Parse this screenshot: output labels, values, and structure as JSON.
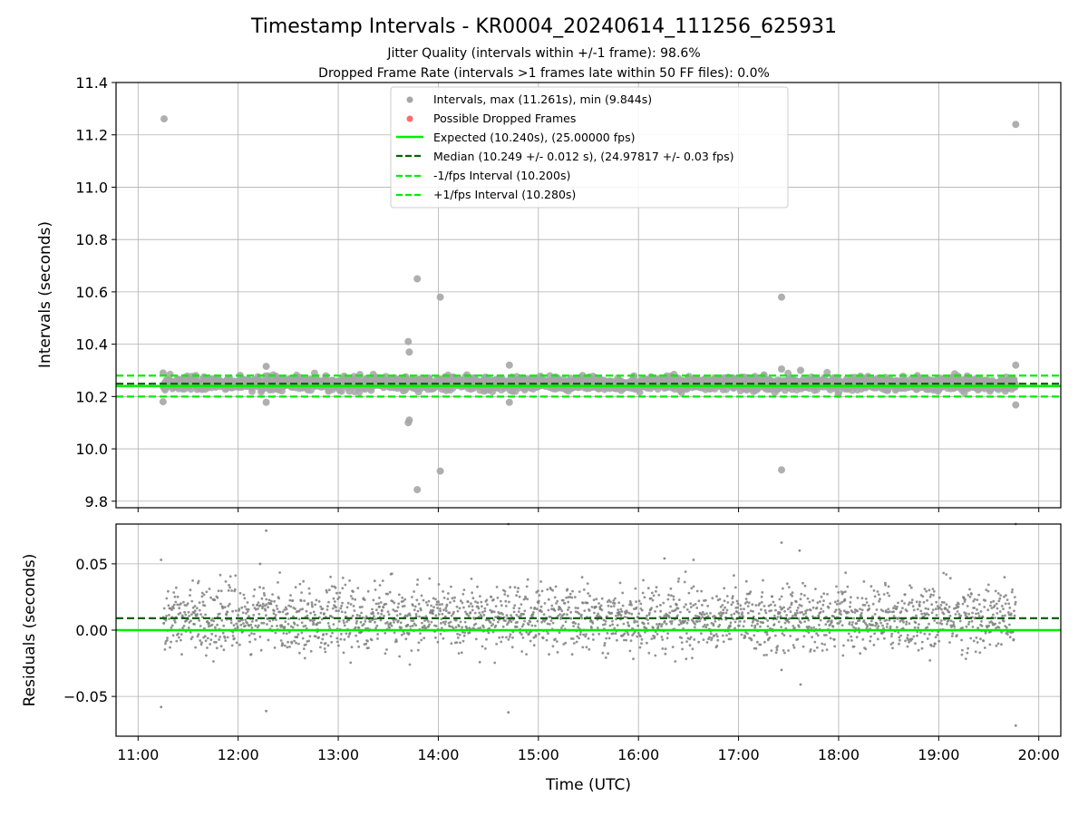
{
  "chart_data": [
    {
      "type": "scatter",
      "title": "Timestamp Intervals - KR0004_20240614_111256_625931",
      "subtitle_lines": [
        "Jitter Quality (intervals within +/-1 frame): 98.6%",
        "Dropped Frame Rate (intervals >1 frames late within 50 FF files): 0.0%"
      ],
      "ylabel": "Intervals (seconds)",
      "xlim_hours": [
        10.78,
        20.22
      ],
      "ylim": [
        9.775,
        11.4
      ],
      "grid": true,
      "legend_position": "top-center",
      "yticks": [
        {
          "v": 11.4,
          "label": "11.4"
        },
        {
          "v": 11.2,
          "label": "11.2"
        },
        {
          "v": 11.0,
          "label": "11.0"
        },
        {
          "v": 10.8,
          "label": "10.8"
        },
        {
          "v": 10.6,
          "label": "10.6"
        },
        {
          "v": 10.4,
          "label": "10.4"
        },
        {
          "v": 10.2,
          "label": "10.2"
        },
        {
          "v": 10.0,
          "label": "10.0"
        },
        {
          "v": 9.8,
          "label": "9.8"
        }
      ],
      "series": [
        {
          "name": "Intervals, max (11.261s), min (9.844s)",
          "kind": "points",
          "color": "#a6a6a6",
          "baseline": 10.249,
          "spread": 0.012,
          "range_hours": [
            11.25,
            19.77
          ],
          "outliers": [
            {
              "x": 11.26,
              "y": 11.261
            },
            {
              "x": 11.25,
              "y": 10.29
            },
            {
              "x": 11.25,
              "y": 10.18
            },
            {
              "x": 12.28,
              "y": 10.315
            },
            {
              "x": 12.28,
              "y": 10.178
            },
            {
              "x": 13.7,
              "y": 10.41
            },
            {
              "x": 13.71,
              "y": 10.37
            },
            {
              "x": 13.7,
              "y": 10.1
            },
            {
              "x": 13.71,
              "y": 10.11
            },
            {
              "x": 13.79,
              "y": 10.65
            },
            {
              "x": 13.79,
              "y": 9.844
            },
            {
              "x": 14.02,
              "y": 10.58
            },
            {
              "x": 14.02,
              "y": 9.915
            },
            {
              "x": 14.71,
              "y": 10.32
            },
            {
              "x": 14.71,
              "y": 10.178
            },
            {
              "x": 17.43,
              "y": 10.58
            },
            {
              "x": 17.43,
              "y": 9.92
            },
            {
              "x": 17.43,
              "y": 10.305
            },
            {
              "x": 17.62,
              "y": 10.3
            },
            {
              "x": 19.77,
              "y": 11.24
            },
            {
              "x": 19.77,
              "y": 10.32
            },
            {
              "x": 19.77,
              "y": 10.168
            }
          ]
        },
        {
          "name": "Possible Dropped Frames",
          "kind": "points",
          "color": "#ff6b6b",
          "values": []
        },
        {
          "name": "Expected (10.240s), (25.00000 fps)",
          "kind": "hline",
          "y": 10.24,
          "color": "#00ee00",
          "style": "solid"
        },
        {
          "name": "Median (10.249 +/- 0.012 s), (24.97817 +/- 0.03 fps)",
          "kind": "hline",
          "y": 10.249,
          "color": "#006400",
          "style": "dashed"
        },
        {
          "name": "-1/fps Interval (10.200s)",
          "kind": "hline",
          "y": 10.2,
          "color": "#00ee00",
          "style": "dashed"
        },
        {
          "name": "+1/fps Interval (10.280s)",
          "kind": "hline",
          "y": 10.28,
          "color": "#00ee00",
          "style": "dashed"
        }
      ]
    },
    {
      "type": "scatter",
      "xlabel": "Time (UTC)",
      "ylabel": "Residuals (seconds)",
      "xlim_hours": [
        10.78,
        20.22
      ],
      "ylim": [
        -0.08,
        0.08
      ],
      "grid": true,
      "yticks": [
        {
          "v": 0.05,
          "label": "0.05"
        },
        {
          "v": 0.0,
          "label": "0.00"
        },
        {
          "v": -0.05,
          "label": "−0.05"
        }
      ],
      "xticks": [
        {
          "v": 11,
          "label": "11:00"
        },
        {
          "v": 12,
          "label": "12:00"
        },
        {
          "v": 13,
          "label": "13:00"
        },
        {
          "v": 14,
          "label": "14:00"
        },
        {
          "v": 15,
          "label": "15:00"
        },
        {
          "v": 16,
          "label": "16:00"
        },
        {
          "v": 17,
          "label": "17:00"
        },
        {
          "v": 18,
          "label": "18:00"
        },
        {
          "v": 19,
          "label": "19:00"
        },
        {
          "v": 20,
          "label": "20:00"
        }
      ],
      "series": [
        {
          "kind": "points",
          "color": "#808080",
          "baseline": 0.009,
          "spread": 0.012,
          "range_hours": [
            11.25,
            19.77
          ],
          "outliers": [
            {
              "x": 11.23,
              "y": 0.053
            },
            {
              "x": 11.23,
              "y": -0.058
            },
            {
              "x": 12.28,
              "y": 0.075
            },
            {
              "x": 12.28,
              "y": -0.061
            },
            {
              "x": 14.7,
              "y": 0.08
            },
            {
              "x": 14.7,
              "y": -0.062
            },
            {
              "x": 17.43,
              "y": 0.066
            },
            {
              "x": 17.61,
              "y": 0.06
            },
            {
              "x": 17.62,
              "y": -0.041
            },
            {
              "x": 19.77,
              "y": 0.08
            },
            {
              "x": 19.77,
              "y": -0.072
            },
            {
              "x": 16.26,
              "y": 0.054
            },
            {
              "x": 16.55,
              "y": 0.053
            },
            {
              "x": 17.43,
              "y": -0.03
            },
            {
              "x": 12.22,
              "y": 0.05
            }
          ]
        },
        {
          "kind": "hline",
          "y": 0.0,
          "color": "#00ee00",
          "style": "solid"
        },
        {
          "kind": "hline",
          "y": 0.009,
          "color": "#006400",
          "style": "dashed"
        }
      ]
    }
  ]
}
